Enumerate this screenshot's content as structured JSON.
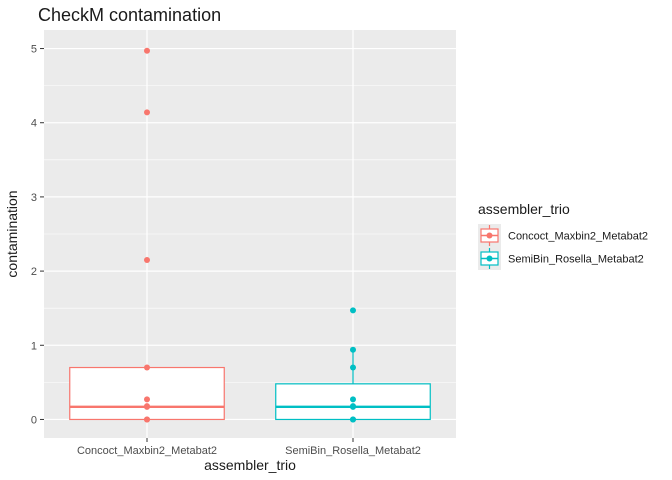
{
  "chart_data": {
    "type": "boxplot",
    "title": "CheckM contamination",
    "xlabel": "assembler_trio",
    "ylabel": "contamination",
    "ylim": [
      -0.25,
      5.25
    ],
    "yticks": [
      0,
      1,
      2,
      3,
      4,
      5
    ],
    "grid": true,
    "legend": {
      "title": "assembler_trio",
      "position": "right"
    },
    "categories": [
      "Concoct_Maxbin2_Metabat2",
      "SemiBin_Rosella_Metabat2"
    ],
    "series": [
      {
        "name": "Concoct_Maxbin2_Metabat2",
        "color": "#F8766D",
        "box": {
          "q1": 0.0,
          "median": 0.17,
          "q3": 0.7,
          "whisker_low": 0.0,
          "whisker_high": 0.7
        },
        "points": [
          4.97,
          4.14,
          2.15,
          0.7,
          0.27,
          0.18,
          0.17,
          0.0,
          0.0
        ]
      },
      {
        "name": "SemiBin_Rosella_Metabat2",
        "color": "#00BFC4",
        "box": {
          "q1": 0.0,
          "median": 0.17,
          "q3": 0.48,
          "whisker_low": 0.0,
          "whisker_high": 0.94
        },
        "points": [
          1.47,
          0.94,
          0.7,
          0.27,
          0.18,
          0.17,
          0.0,
          0.0
        ]
      }
    ],
    "colors": {
      "panel": "#EBEBEB",
      "grid": "#FFFFFF",
      "text": "#4D4D4D"
    }
  }
}
